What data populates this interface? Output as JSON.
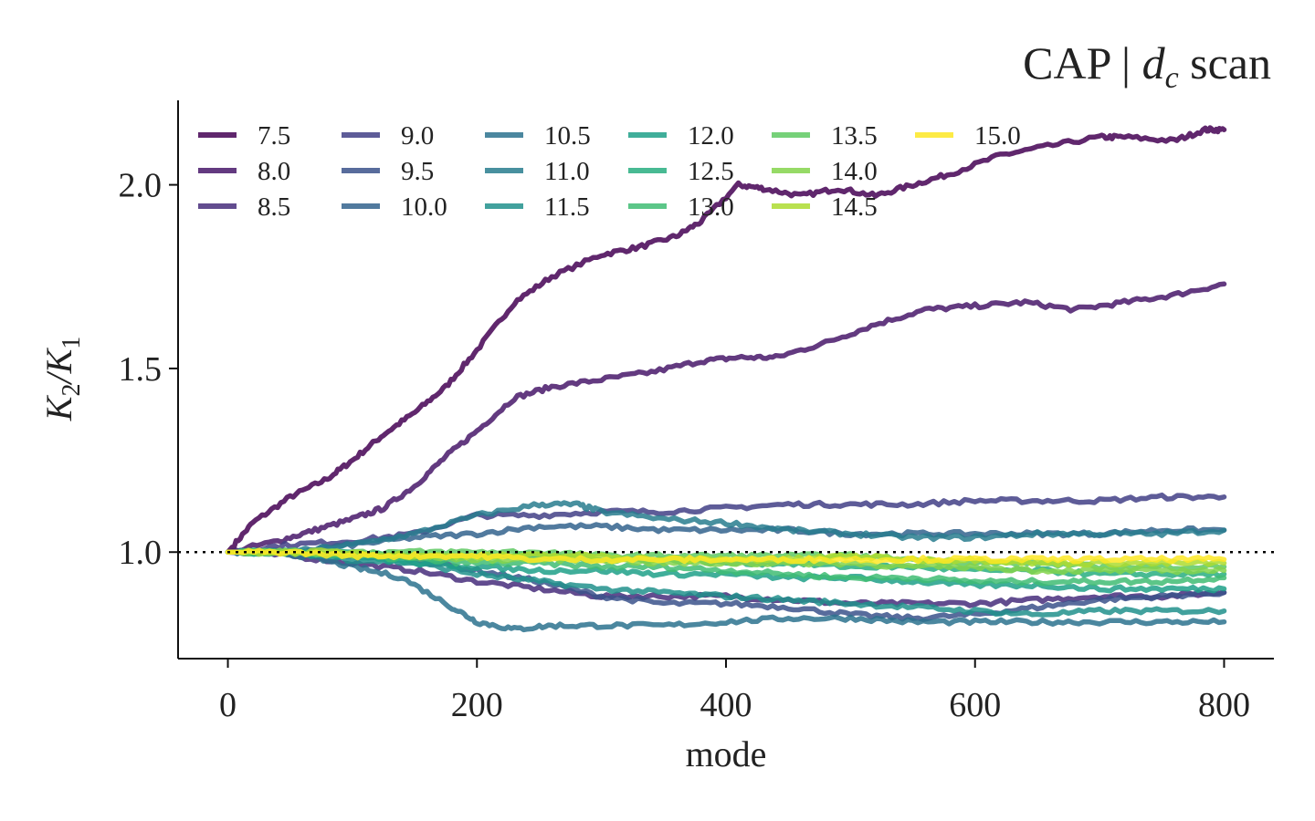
{
  "chart_data": {
    "type": "line",
    "title": "CAP | ",
    "title_math": "d",
    "title_sub": "c",
    "title_suffix": " scan",
    "xlabel": "mode",
    "ylabel_parts": [
      "K",
      "2",
      "/K",
      "1"
    ],
    "xlim": [
      -40,
      840
    ],
    "ylim": [
      0.71,
      2.23
    ],
    "xticks": [
      0,
      200,
      400,
      600,
      800
    ],
    "xtick_labels": [
      "0",
      "200",
      "400",
      "600",
      "800"
    ],
    "yticks": [
      1.0,
      1.5,
      2.0
    ],
    "ytick_labels": [
      "1.0",
      "1.5",
      "2.0"
    ],
    "reference_line": 1.0,
    "grid": false,
    "legend": {
      "placement": "top-left",
      "columns": 7
    },
    "series": [
      {
        "name": "7.5",
        "color": "#440154",
        "points": [
          [
            0,
            1.0
          ],
          [
            20,
            1.08
          ],
          [
            50,
            1.15
          ],
          [
            80,
            1.2
          ],
          [
            100,
            1.25
          ],
          [
            125,
            1.32
          ],
          [
            150,
            1.38
          ],
          [
            175,
            1.45
          ],
          [
            200,
            1.55
          ],
          [
            230,
            1.68
          ],
          [
            260,
            1.75
          ],
          [
            300,
            1.81
          ],
          [
            330,
            1.83
          ],
          [
            360,
            1.86
          ],
          [
            380,
            1.9
          ],
          [
            410,
            2.0
          ],
          [
            430,
            1.99
          ],
          [
            460,
            1.97
          ],
          [
            490,
            1.99
          ],
          [
            520,
            1.97
          ],
          [
            550,
            2.0
          ],
          [
            580,
            2.03
          ],
          [
            620,
            2.08
          ],
          [
            650,
            2.1
          ],
          [
            700,
            2.13
          ],
          [
            720,
            2.13
          ],
          [
            760,
            2.12
          ],
          [
            785,
            2.15
          ],
          [
            800,
            2.15
          ]
        ]
      },
      {
        "name": "8.0",
        "color": "#48186a",
        "points": [
          [
            0,
            1.0
          ],
          [
            40,
            1.03
          ],
          [
            70,
            1.06
          ],
          [
            100,
            1.09
          ],
          [
            125,
            1.12
          ],
          [
            150,
            1.18
          ],
          [
            175,
            1.26
          ],
          [
            200,
            1.33
          ],
          [
            230,
            1.42
          ],
          [
            260,
            1.45
          ],
          [
            300,
            1.47
          ],
          [
            340,
            1.49
          ],
          [
            380,
            1.52
          ],
          [
            410,
            1.53
          ],
          [
            440,
            1.53
          ],
          [
            480,
            1.57
          ],
          [
            520,
            1.62
          ],
          [
            560,
            1.66
          ],
          [
            600,
            1.67
          ],
          [
            640,
            1.68
          ],
          [
            680,
            1.66
          ],
          [
            720,
            1.68
          ],
          [
            760,
            1.7
          ],
          [
            800,
            1.73
          ]
        ]
      },
      {
        "name": "8.5",
        "color": "#472d7b",
        "points": [
          [
            0,
            1.0
          ],
          [
            50,
            0.99
          ],
          [
            100,
            0.97
          ],
          [
            150,
            0.95
          ],
          [
            200,
            0.92
          ],
          [
            250,
            0.9
          ],
          [
            300,
            0.88
          ],
          [
            350,
            0.88
          ],
          [
            400,
            0.88
          ],
          [
            450,
            0.87
          ],
          [
            500,
            0.86
          ],
          [
            550,
            0.86
          ],
          [
            600,
            0.86
          ],
          [
            650,
            0.87
          ],
          [
            700,
            0.88
          ],
          [
            750,
            0.88
          ],
          [
            800,
            0.89
          ]
        ]
      },
      {
        "name": "9.0",
        "color": "#424086",
        "points": [
          [
            0,
            1.0
          ],
          [
            50,
            1.02
          ],
          [
            100,
            1.03
          ],
          [
            150,
            1.05
          ],
          [
            200,
            1.1
          ],
          [
            250,
            1.1
          ],
          [
            300,
            1.11
          ],
          [
            350,
            1.11
          ],
          [
            400,
            1.12
          ],
          [
            450,
            1.13
          ],
          [
            500,
            1.13
          ],
          [
            550,
            1.13
          ],
          [
            600,
            1.14
          ],
          [
            650,
            1.14
          ],
          [
            700,
            1.14
          ],
          [
            750,
            1.15
          ],
          [
            800,
            1.15
          ]
        ]
      },
      {
        "name": "9.5",
        "color": "#3b528b",
        "points": [
          [
            0,
            1.0
          ],
          [
            50,
            1.0
          ],
          [
            100,
            0.99
          ],
          [
            150,
            0.98
          ],
          [
            200,
            0.95
          ],
          [
            250,
            0.92
          ],
          [
            300,
            0.88
          ],
          [
            350,
            0.86
          ],
          [
            400,
            0.86
          ],
          [
            450,
            0.85
          ],
          [
            500,
            0.83
          ],
          [
            550,
            0.82
          ],
          [
            600,
            0.83
          ],
          [
            650,
            0.85
          ],
          [
            700,
            0.87
          ],
          [
            750,
            0.88
          ],
          [
            800,
            0.89
          ]
        ]
      },
      {
        "name": "10.0",
        "color": "#33638d",
        "points": [
          [
            0,
            1.0
          ],
          [
            50,
            1.0
          ],
          [
            100,
            1.02
          ],
          [
            150,
            1.04
          ],
          [
            200,
            1.05
          ],
          [
            250,
            1.07
          ],
          [
            300,
            1.07
          ],
          [
            350,
            1.06
          ],
          [
            400,
            1.06
          ],
          [
            450,
            1.06
          ],
          [
            500,
            1.05
          ],
          [
            550,
            1.05
          ],
          [
            600,
            1.05
          ],
          [
            650,
            1.05
          ],
          [
            700,
            1.05
          ],
          [
            750,
            1.06
          ],
          [
            800,
            1.06
          ]
        ]
      },
      {
        "name": "10.5",
        "color": "#2c728e",
        "points": [
          [
            0,
            1.0
          ],
          [
            30,
            1.0
          ],
          [
            60,
            0.99
          ],
          [
            100,
            0.96
          ],
          [
            140,
            0.93
          ],
          [
            180,
            0.85
          ],
          [
            200,
            0.81
          ],
          [
            230,
            0.79
          ],
          [
            260,
            0.8
          ],
          [
            300,
            0.8
          ],
          [
            350,
            0.8
          ],
          [
            400,
            0.81
          ],
          [
            450,
            0.82
          ],
          [
            500,
            0.82
          ],
          [
            550,
            0.81
          ],
          [
            600,
            0.81
          ],
          [
            650,
            0.81
          ],
          [
            700,
            0.81
          ],
          [
            750,
            0.81
          ],
          [
            800,
            0.81
          ]
        ]
      },
      {
        "name": "11.0",
        "color": "#287d8e",
        "points": [
          [
            0,
            1.0
          ],
          [
            50,
            1.0
          ],
          [
            100,
            1.02
          ],
          [
            150,
            1.05
          ],
          [
            200,
            1.1
          ],
          [
            250,
            1.13
          ],
          [
            280,
            1.13
          ],
          [
            300,
            1.11
          ],
          [
            350,
            1.09
          ],
          [
            400,
            1.08
          ],
          [
            450,
            1.06
          ],
          [
            500,
            1.05
          ],
          [
            550,
            1.04
          ],
          [
            600,
            1.04
          ],
          [
            650,
            1.05
          ],
          [
            700,
            1.05
          ],
          [
            750,
            1.05
          ],
          [
            800,
            1.06
          ]
        ]
      },
      {
        "name": "11.5",
        "color": "#21918c",
        "points": [
          [
            0,
            1.0
          ],
          [
            50,
            1.0
          ],
          [
            100,
            0.98
          ],
          [
            150,
            0.97
          ],
          [
            200,
            0.94
          ],
          [
            250,
            0.92
          ],
          [
            300,
            0.9
          ],
          [
            350,
            0.89
          ],
          [
            400,
            0.88
          ],
          [
            450,
            0.87
          ],
          [
            500,
            0.86
          ],
          [
            550,
            0.85
          ],
          [
            600,
            0.84
          ],
          [
            650,
            0.83
          ],
          [
            700,
            0.84
          ],
          [
            750,
            0.84
          ],
          [
            800,
            0.84
          ]
        ]
      },
      {
        "name": "12.0",
        "color": "#1fa088",
        "points": [
          [
            0,
            1.0
          ],
          [
            50,
            1.0
          ],
          [
            100,
            0.99
          ],
          [
            150,
            0.97
          ],
          [
            200,
            0.96
          ],
          [
            250,
            0.95
          ],
          [
            300,
            0.95
          ],
          [
            350,
            0.94
          ],
          [
            400,
            0.94
          ],
          [
            450,
            0.93
          ],
          [
            500,
            0.93
          ],
          [
            550,
            0.92
          ],
          [
            600,
            0.91
          ],
          [
            650,
            0.91
          ],
          [
            700,
            0.9
          ],
          [
            750,
            0.9
          ],
          [
            800,
            0.9
          ]
        ]
      },
      {
        "name": "12.5",
        "color": "#28ae80",
        "points": [
          [
            0,
            1.0
          ],
          [
            50,
            1.0
          ],
          [
            100,
            1.0
          ],
          [
            150,
            0.99
          ],
          [
            200,
            0.99
          ],
          [
            250,
            0.99
          ],
          [
            300,
            0.98
          ],
          [
            350,
            0.98
          ],
          [
            400,
            0.97
          ],
          [
            450,
            0.97
          ],
          [
            500,
            0.96
          ],
          [
            550,
            0.96
          ],
          [
            600,
            0.95
          ],
          [
            650,
            0.95
          ],
          [
            700,
            0.94
          ],
          [
            750,
            0.94
          ],
          [
            800,
            0.94
          ]
        ]
      },
      {
        "name": "13.0",
        "color": "#3fbc73",
        "points": [
          [
            0,
            1.0
          ],
          [
            50,
            1.0
          ],
          [
            100,
            0.99
          ],
          [
            150,
            0.98
          ],
          [
            200,
            0.97
          ],
          [
            250,
            0.97
          ],
          [
            300,
            0.96
          ],
          [
            350,
            0.96
          ],
          [
            400,
            0.95
          ],
          [
            450,
            0.94
          ],
          [
            500,
            0.93
          ],
          [
            550,
            0.93
          ],
          [
            600,
            0.92
          ],
          [
            650,
            0.92
          ],
          [
            700,
            0.92
          ],
          [
            750,
            0.92
          ],
          [
            800,
            0.93
          ]
        ]
      },
      {
        "name": "13.5",
        "color": "#5ec962",
        "points": [
          [
            0,
            1.0
          ],
          [
            50,
            1.0
          ],
          [
            100,
            1.0
          ],
          [
            150,
            1.0
          ],
          [
            200,
            1.0
          ],
          [
            250,
            1.0
          ],
          [
            300,
            0.99
          ],
          [
            350,
            0.99
          ],
          [
            400,
            0.99
          ],
          [
            450,
            0.99
          ],
          [
            500,
            0.99
          ],
          [
            550,
            0.98
          ],
          [
            600,
            0.97
          ],
          [
            650,
            0.97
          ],
          [
            700,
            0.96
          ],
          [
            750,
            0.96
          ],
          [
            800,
            0.96
          ]
        ]
      },
      {
        "name": "14.0",
        "color": "#84d44b",
        "points": [
          [
            0,
            1.0
          ],
          [
            50,
            1.0
          ],
          [
            100,
            0.99
          ],
          [
            150,
            0.99
          ],
          [
            200,
            0.98
          ],
          [
            250,
            0.98
          ],
          [
            300,
            0.98
          ],
          [
            350,
            0.97
          ],
          [
            400,
            0.97
          ],
          [
            450,
            0.97
          ],
          [
            500,
            0.97
          ],
          [
            550,
            0.96
          ],
          [
            600,
            0.96
          ],
          [
            650,
            0.95
          ],
          [
            700,
            0.95
          ],
          [
            750,
            0.95
          ],
          [
            800,
            0.95
          ]
        ]
      },
      {
        "name": "14.5",
        "color": "#addc30",
        "points": [
          [
            0,
            1.0
          ],
          [
            50,
            1.0
          ],
          [
            100,
            1.0
          ],
          [
            150,
            0.99
          ],
          [
            200,
            0.99
          ],
          [
            250,
            0.99
          ],
          [
            300,
            0.99
          ],
          [
            350,
            0.98
          ],
          [
            400,
            0.98
          ],
          [
            450,
            0.98
          ],
          [
            500,
            0.99
          ],
          [
            550,
            0.98
          ],
          [
            600,
            0.98
          ],
          [
            650,
            0.97
          ],
          [
            700,
            0.97
          ],
          [
            750,
            0.97
          ],
          [
            800,
            0.97
          ]
        ]
      },
      {
        "name": "15.0",
        "color": "#fde725",
        "points": [
          [
            0,
            1.0
          ],
          [
            50,
            1.0
          ],
          [
            100,
            0.99
          ],
          [
            150,
            0.99
          ],
          [
            200,
            0.99
          ],
          [
            250,
            0.98
          ],
          [
            300,
            0.98
          ],
          [
            350,
            0.98
          ],
          [
            400,
            0.98
          ],
          [
            450,
            0.98
          ],
          [
            500,
            0.98
          ],
          [
            550,
            0.98
          ],
          [
            600,
            0.98
          ],
          [
            650,
            0.98
          ],
          [
            700,
            0.98
          ],
          [
            750,
            0.98
          ],
          [
            800,
            0.98
          ]
        ]
      }
    ]
  }
}
